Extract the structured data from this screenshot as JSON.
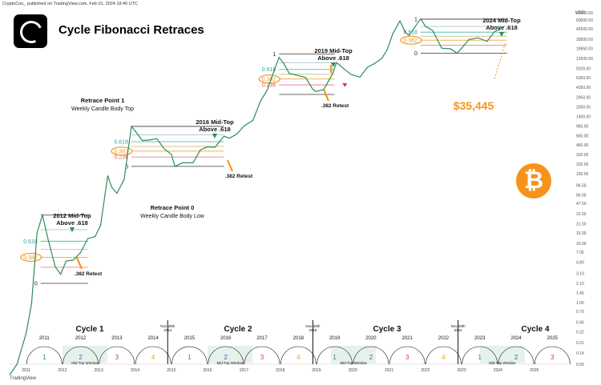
{
  "header": {
    "credit": "CryptoCon_ published on TradingView.com, Feb 01, 2024 18:46 UTC",
    "title": "Cycle Fibonacci Retraces",
    "brand": "TradingView",
    "price_currency": "USD"
  },
  "chart_data": {
    "type": "line",
    "title": "Cycle Fibonacci Retraces",
    "y_scale": "log",
    "y_axis_label": "USD",
    "ylim": [
      0.09,
      90000
    ],
    "xlim": [
      2010.5,
      2026.0
    ],
    "y_ticks": [
      "80000.00",
      "60000.00",
      "42500.00",
      "28500.00",
      "19850.00",
      "13500.00",
      "9100.00",
      "6350.00",
      "4350.00",
      "2950.00",
      "2050.00",
      "1400.00",
      "960.00",
      "660.00",
      "460.00",
      "320.00",
      "220.00",
      "150.00",
      "96.50",
      "66.00",
      "47.50",
      "31.50",
      "21.50",
      "15.00",
      "10.00",
      "7.05",
      "4.80",
      "3.10",
      "2.10",
      "1.45",
      "1.00",
      "0.70",
      "0.46",
      "0.32",
      "0.21",
      "0.14",
      "0.09"
    ],
    "x_ticks": [
      "2011",
      "2012",
      "2013",
      "2014",
      "2015",
      "2016",
      "2017",
      "2018",
      "2019",
      "2020",
      "2021",
      "2022",
      "2023",
      "2024",
      "2025"
    ],
    "series": [
      {
        "color": "#2e8b57",
        "x": [
          2010.55,
          2010.75,
          2011.0,
          2011.15,
          2011.3,
          2011.45,
          2011.6,
          2011.8,
          2011.95,
          2012.1,
          2012.3,
          2012.5,
          2012.7,
          2012.9,
          2013.05,
          2013.25,
          2013.35,
          2013.5,
          2013.7,
          2013.9,
          2014.0,
          2014.2,
          2014.4,
          2014.6,
          2014.8,
          2015.0,
          2015.1,
          2015.3,
          2015.6,
          2015.8,
          2016.0,
          2016.2,
          2016.45,
          2016.6,
          2016.8,
          2017.0,
          2017.25,
          2017.45,
          2017.65,
          2017.85,
          2017.97,
          2018.1,
          2018.25,
          2018.45,
          2018.7,
          2018.9,
          2018.98,
          2019.2,
          2019.45,
          2019.55,
          2019.75,
          2019.95,
          2020.2,
          2020.4,
          2020.6,
          2020.8,
          2020.95,
          2021.1,
          2021.3,
          2021.45,
          2021.55,
          2021.8,
          2021.87,
          2022.0,
          2022.2,
          2022.45,
          2022.7,
          2022.87,
          2023.0,
          2023.2,
          2023.45,
          2023.7,
          2023.9,
          2024.08
        ],
        "y": [
          0.06,
          0.09,
          0.3,
          0.95,
          15,
          30,
          12,
          4,
          3,
          5,
          5.2,
          7,
          12,
          13,
          20,
          140,
          90,
          70,
          120,
          950,
          800,
          550,
          560,
          590,
          400,
          320,
          200,
          230,
          230,
          380,
          430,
          420,
          650,
          600,
          700,
          960,
          1200,
          2500,
          4000,
          9000,
          14000,
          11000,
          7500,
          7000,
          6400,
          4000,
          3700,
          4000,
          7500,
          11500,
          9000,
          7200,
          6500,
          9500,
          11000,
          13500,
          19000,
          35000,
          58000,
          37000,
          33000,
          55000,
          63000,
          47000,
          40000,
          20000,
          19500,
          16500,
          20000,
          28000,
          30000,
          26000,
          38000,
          42500
        ]
      }
    ],
    "cycles": [
      {
        "label": "Cycle 1",
        "top_label": "Retrace Point 1",
        "top_sublabel": "Weekly Candle Body Top",
        "low_label": "Retrace Point 0",
        "low_sublabel": "Weekly Candle Body Low",
        "midtop": "2012 Mid-Top\nAbove .618",
        "retest": ".382 Retest"
      },
      {
        "label": "Cycle 2",
        "midtop": "2016 Mid-Top\nAbove .618",
        "retest": ".382 Retest"
      },
      {
        "label": "Cycle 3",
        "midtop": "2019 Mid-Top\nAbove .618",
        "retest": ".382 Retest"
      },
      {
        "label": "Cycle 4",
        "midtop": "2024 Mid-Top\nAbove .618",
        "target": "$35,445"
      }
    ],
    "fib_sets": [
      {
        "x0": 2011.4,
        "x1": 2012.7,
        "p1": 30,
        "p0": 2.1,
        "levels": [
          "1",
          "0.786",
          "0.618",
          "0.5",
          "0.382",
          "0.236",
          "0"
        ],
        "show": [
          "0.618",
          "0.382",
          "0"
        ]
      },
      {
        "x0": 2013.9,
        "x1": 2016.45,
        "p1": 950,
        "p0": 200,
        "levels": [
          "1",
          "0.786",
          "0.618",
          "0.5",
          "0.382",
          "0.236",
          "0"
        ],
        "show": [
          "0.618",
          "0.382",
          "0.236",
          "0"
        ]
      },
      {
        "x0": 2017.97,
        "x1": 2019.5,
        "p1": 16000,
        "p0": 3300,
        "levels": [
          "1",
          "0.786",
          "0.618",
          "0.5",
          "0.382",
          "0.236",
          "0"
        ],
        "show": [
          "1",
          "0.618",
          "0.382",
          "0.236"
        ]
      },
      {
        "x0": 2021.87,
        "x1": 2024.25,
        "p1": 62000,
        "p0": 16500,
        "levels": [
          "1",
          "0.786",
          "0.618",
          "0.5",
          "0.382",
          "0.236",
          "0"
        ],
        "show": [
          "1",
          "0.618",
          "0.382",
          "0"
        ]
      }
    ],
    "timeline": {
      "years": [
        "2011",
        "2012",
        "2013",
        "2014",
        "2015",
        "2016",
        "2017",
        "2018",
        "2019",
        "2020",
        "2021",
        "2022",
        "2023",
        "2024",
        "2025"
      ],
      "phase_nums": [
        "1",
        "2",
        "3",
        "4",
        "1",
        "2",
        "3",
        "4",
        "1",
        "2",
        "3",
        "4",
        "1",
        "2",
        "3"
      ],
      "phase_colors": [
        "#2e8b57",
        "#3b5bdb",
        "#d6336c",
        "#f59f00"
      ],
      "halvings": [
        "Nov 28th 2014",
        "Nov 28th 2018",
        "Nov 28th 2022"
      ],
      "window_label": "Mid-Top Window"
    },
    "colors": {
      "price": "#2e8b57",
      "fib": "#6b6b6b",
      "level_618": "#27a6a0",
      "level_382": "#e6a020",
      "level_236": "#e06070",
      "level_1": "#222",
      "arrow": "#f7931a",
      "green_arrow": "#2e8b57",
      "red_arrow": "#e03131"
    }
  }
}
